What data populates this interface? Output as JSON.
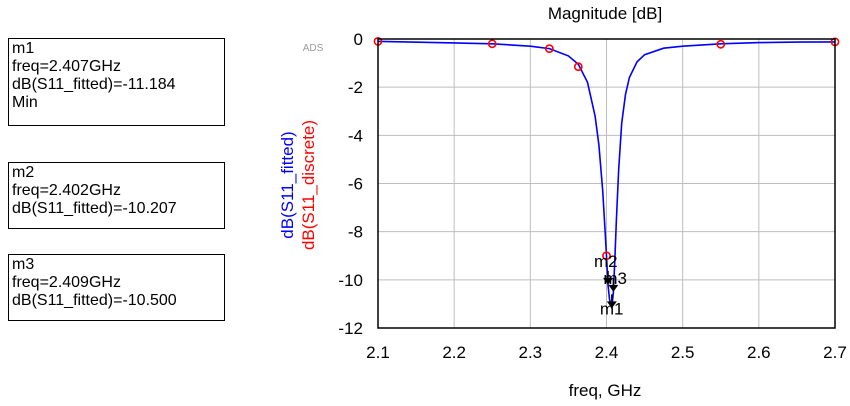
{
  "markers": [
    {
      "id": "m1",
      "lines": [
        "m1",
        "freq=2.407GHz",
        "dB(S11_fitted)=-11.184",
        "Min"
      ]
    },
    {
      "id": "m2",
      "lines": [
        "m2",
        "freq=2.402GHz",
        "dB(S11_fitted)=-10.207"
      ]
    },
    {
      "id": "m3",
      "lines": [
        "m3",
        "freq=2.409GHz",
        "dB(S11_fitted)=-10.500"
      ]
    }
  ],
  "watermark": "ADS",
  "chart_data": {
    "type": "line",
    "title": "Magnitude [dB]",
    "xlabel": "freq, GHz",
    "ylabels": [
      {
        "text": "dB(S11_fitted)",
        "color": "#0000ff"
      },
      {
        "text": "dB(S11_discrete)",
        "color": "#ff0000"
      }
    ],
    "xlim": [
      2.1,
      2.7
    ],
    "ylim": [
      -12,
      0
    ],
    "xticks": [
      2.1,
      2.2,
      2.3,
      2.4,
      2.5,
      2.6,
      2.7
    ],
    "yticks": [
      0,
      -2,
      -4,
      -6,
      -8,
      -10,
      -12
    ],
    "xtick_labels": [
      "2.1",
      "2.2",
      "2.3",
      "2.4",
      "2.5",
      "2.6",
      "2.7"
    ],
    "ytick_labels": [
      "0",
      "-2",
      "-4",
      "-6",
      "-8",
      "-10",
      "-12"
    ],
    "grid": true,
    "series": [
      {
        "key": "fitted",
        "color": "#0000ff",
        "style": "line",
        "x": [
          2.1,
          2.2,
          2.25,
          2.3,
          2.325,
          2.35,
          2.363,
          2.375,
          2.385,
          2.39,
          2.395,
          2.398,
          2.4,
          2.402,
          2.404,
          2.407,
          2.409,
          2.411,
          2.413,
          2.416,
          2.42,
          2.425,
          2.43,
          2.44,
          2.45,
          2.475,
          2.5,
          2.55,
          2.6,
          2.65,
          2.7
        ],
        "y": [
          -0.1,
          -0.16,
          -0.2,
          -0.3,
          -0.4,
          -0.7,
          -1.05,
          -1.8,
          -3.2,
          -4.4,
          -6.3,
          -7.9,
          -9.0,
          -10.207,
          -10.8,
          -11.184,
          -10.5,
          -9.1,
          -7.5,
          -5.4,
          -3.5,
          -2.3,
          -1.6,
          -0.95,
          -0.65,
          -0.38,
          -0.3,
          -0.2,
          -0.15,
          -0.13,
          -0.12
        ]
      },
      {
        "key": "discrete",
        "color": "#ff0000",
        "style": "markers",
        "x": [
          2.1,
          2.25,
          2.325,
          2.363,
          2.4,
          2.55,
          2.7
        ],
        "y": [
          -0.1,
          -0.2,
          -0.4,
          -1.15,
          -9.0,
          -0.22,
          -0.12
        ]
      }
    ],
    "markers": [
      {
        "label": "m1",
        "x": 2.407,
        "y": -11.184
      },
      {
        "label": "m2",
        "x": 2.402,
        "y": -10.207
      },
      {
        "label": "m3",
        "x": 2.409,
        "y": -10.5
      }
    ]
  }
}
